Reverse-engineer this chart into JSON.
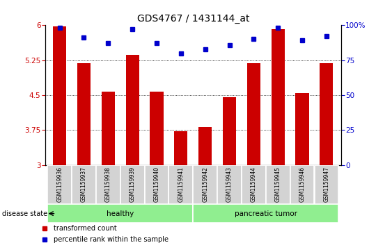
{
  "title": "GDS4767 / 1431144_at",
  "samples": [
    "GSM1159936",
    "GSM1159937",
    "GSM1159938",
    "GSM1159939",
    "GSM1159940",
    "GSM1159941",
    "GSM1159942",
    "GSM1159943",
    "GSM1159944",
    "GSM1159945",
    "GSM1159946",
    "GSM1159947"
  ],
  "bar_values": [
    5.97,
    5.19,
    4.57,
    5.37,
    4.57,
    3.73,
    3.82,
    4.45,
    5.19,
    5.92,
    4.55,
    5.19
  ],
  "dot_values": [
    98,
    91,
    87,
    97,
    87,
    80,
    83,
    86,
    90,
    98,
    89,
    92
  ],
  "bar_color": "#cc0000",
  "dot_color": "#0000cc",
  "ylim_left": [
    3,
    6
  ],
  "ylim_right": [
    0,
    100
  ],
  "yticks_left": [
    3,
    3.75,
    4.5,
    5.25,
    6
  ],
  "yticks_right": [
    0,
    25,
    50,
    75,
    100
  ],
  "healthy_indices": [
    0,
    1,
    2,
    3,
    4,
    5
  ],
  "tumor_indices": [
    6,
    7,
    8,
    9,
    10,
    11
  ],
  "group_color": "#90ee90",
  "tick_area_color": "#d3d3d3",
  "disease_state_label": "disease state",
  "healthy_label": "healthy",
  "tumor_label": "pancreatic tumor",
  "legend_bar_label": "transformed count",
  "legend_dot_label": "percentile rank within the sample",
  "bar_width": 0.55
}
